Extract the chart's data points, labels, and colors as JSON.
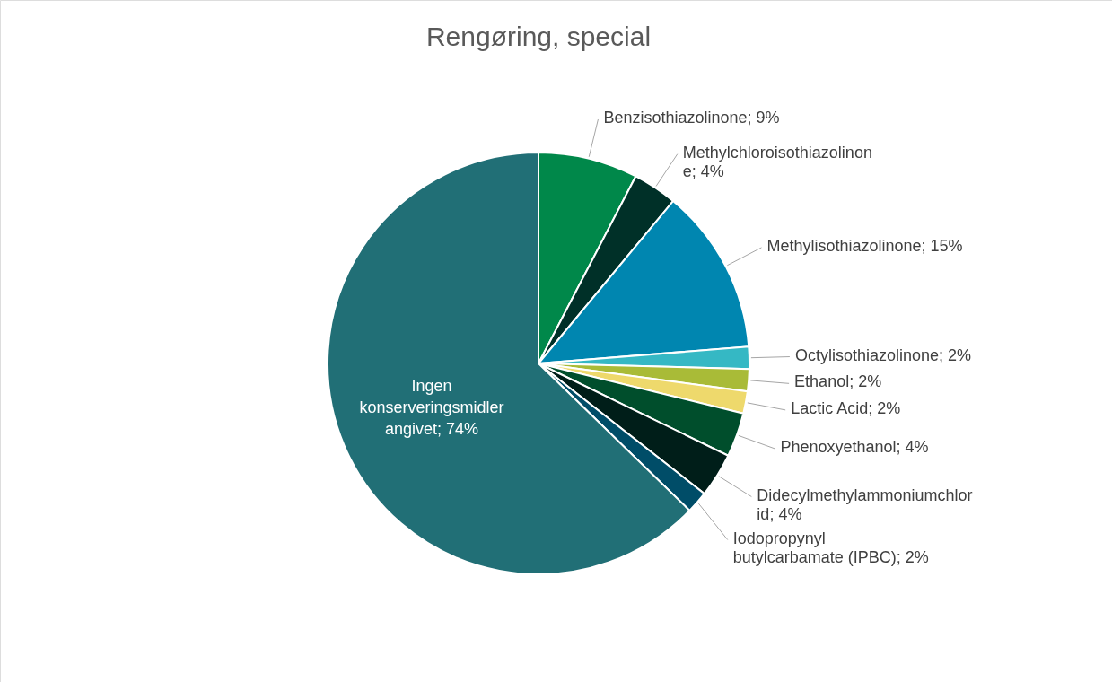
{
  "chart_data": {
    "type": "pie",
    "title": "Rengøring, special",
    "categories": [
      "Benzisothiazolinone",
      "Methylchloroisothiazolinone",
      "Methylisothiazolinone",
      "Octylisothiazolinone",
      "Ethanol",
      "Lactic Acid",
      "Phenoxyethanol",
      "Didecylmethylammoniumchlorid",
      "Iodopropynyl butylcarbamate (IPBC)",
      "Ingen konserveringsmidler angivet"
    ],
    "values": [
      9,
      4,
      15,
      2,
      2,
      2,
      4,
      4,
      2,
      74
    ],
    "value_labels": [
      "9%",
      "4%",
      "15%",
      "2%",
      "2%",
      "2%",
      "4%",
      "4%",
      "2%",
      "74%"
    ],
    "colors": [
      "#00884a",
      "#003028",
      "#0086b0",
      "#35b8c4",
      "#a9bb37",
      "#eed96c",
      "#004e2c",
      "#001e19",
      "#004d68",
      "#216f76"
    ]
  }
}
